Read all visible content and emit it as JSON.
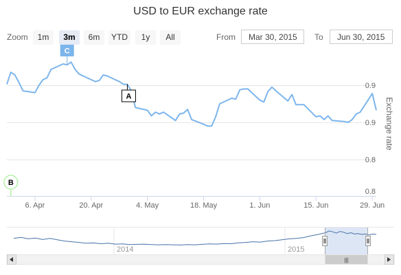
{
  "title": "USD to EUR exchange rate",
  "range_selector": {
    "zoom_label": "Zoom",
    "buttons": [
      "1m",
      "3m",
      "6m",
      "YTD",
      "1y",
      "All"
    ],
    "selected": "3m",
    "from_label": "From",
    "from_value": "Mar 30, 2015",
    "to_label": "To",
    "to_value": "Jun 30, 2015"
  },
  "navigator": {
    "year_labels": [
      "2014",
      "2015"
    ],
    "scrollbar_grip": "|||"
  },
  "colors": {
    "series": "#7cb5ec",
    "flag_c": "#7cb5ec",
    "flag_b": "#90ed7d",
    "flag_a": "#000000",
    "navigator_fill": "#c7d6ee",
    "navigator_line": "#4572a7"
  },
  "chart_data": {
    "type": "line",
    "title": "USD to EUR exchange rate",
    "ylabel": "Exchange rate",
    "xlabel": "",
    "x_tick_labels": [
      "6. Apr",
      "20. Apr",
      "4. May",
      "18. May",
      "1. Jun",
      "15. Jun",
      "29. Jun"
    ],
    "y_tick_labels": [
      "0.9",
      "0.9",
      "0.8",
      "0.8"
    ],
    "ylim": [
      0.8,
      0.96
    ],
    "grid": true,
    "series": [
      {
        "name": "USD to EUR",
        "x": [
          "2015-03-30",
          "2015-03-31",
          "2015-04-01",
          "2015-04-02",
          "2015-04-03",
          "2015-04-06",
          "2015-04-07",
          "2015-04-08",
          "2015-04-09",
          "2015-04-10",
          "2015-04-13",
          "2015-04-14",
          "2015-04-15",
          "2015-04-16",
          "2015-04-17",
          "2015-04-20",
          "2015-04-21",
          "2015-04-22",
          "2015-04-23",
          "2015-04-24",
          "2015-04-27",
          "2015-04-28",
          "2015-04-29",
          "2015-04-30",
          "2015-05-01",
          "2015-05-04",
          "2015-05-05",
          "2015-05-06",
          "2015-05-07",
          "2015-05-08",
          "2015-05-11",
          "2015-05-12",
          "2015-05-13",
          "2015-05-14",
          "2015-05-15",
          "2015-05-18",
          "2015-05-19",
          "2015-05-20",
          "2015-05-21",
          "2015-05-22",
          "2015-05-25",
          "2015-05-26",
          "2015-05-27",
          "2015-05-28",
          "2015-05-29",
          "2015-06-01",
          "2015-06-02",
          "2015-06-03",
          "2015-06-04",
          "2015-06-05",
          "2015-06-08",
          "2015-06-09",
          "2015-06-10",
          "2015-06-11",
          "2015-06-12",
          "2015-06-15",
          "2015-06-16",
          "2015-06-17",
          "2015-06-18",
          "2015-06-19",
          "2015-06-22",
          "2015-06-23",
          "2015-06-24",
          "2015-06-25",
          "2015-06-26",
          "2015-06-29",
          "2015-06-30"
        ],
        "y": [
          0.921,
          0.934,
          0.931,
          0.923,
          0.914,
          0.912,
          0.92,
          0.926,
          0.928,
          0.937,
          0.943,
          0.942,
          0.945,
          0.937,
          0.932,
          0.926,
          0.924,
          0.925,
          0.931,
          0.93,
          0.924,
          0.921,
          0.921,
          0.914,
          0.896,
          0.893,
          0.887,
          0.891,
          0.889,
          0.891,
          0.882,
          0.889,
          0.89,
          0.894,
          0.883,
          0.878,
          0.876,
          0.876,
          0.886,
          0.9,
          0.906,
          0.905,
          0.915,
          0.916,
          0.916,
          0.904,
          0.902,
          0.913,
          0.918,
          0.914,
          0.903,
          0.91,
          0.899,
          0.899,
          0.899,
          0.886,
          0.887,
          0.883,
          0.887,
          0.882,
          0.881,
          0.88,
          0.883,
          0.889,
          0.891,
          0.911,
          0.893
        ]
      }
    ],
    "flags": [
      {
        "text": "C",
        "date": "2015-04-14"
      },
      {
        "text": "A",
        "date": "2015-04-29"
      },
      {
        "text": "B",
        "date": "2015-03-31"
      }
    ]
  }
}
